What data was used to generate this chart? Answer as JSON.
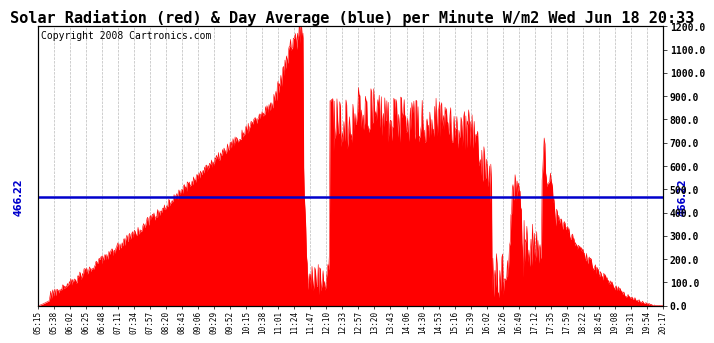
{
  "title": "Solar Radiation (red) & Day Average (blue) per Minute W/m2 Wed Jun 18 20:33",
  "copyright_text": "Copyright 2008 Cartronics.com",
  "average_value": 466.22,
  "y_min": 0.0,
  "y_max": 1200.0,
  "y_ticks": [
    0.0,
    100.0,
    200.0,
    300.0,
    400.0,
    500.0,
    600.0,
    700.0,
    800.0,
    900.0,
    1000.0,
    1100.0,
    1200.0
  ],
  "fill_color": "#FF0000",
  "line_color": "#FF0000",
  "avg_line_color": "#0000CC",
  "background_color": "#FFFFFF",
  "grid_color": "#AAAAAA",
  "title_fontsize": 11,
  "copyright_fontsize": 7,
  "x_labels": [
    "05:15",
    "05:38",
    "06:02",
    "06:25",
    "06:48",
    "07:11",
    "07:34",
    "07:57",
    "08:20",
    "08:43",
    "09:06",
    "09:29",
    "09:52",
    "10:15",
    "10:38",
    "11:01",
    "11:24",
    "11:47",
    "12:10",
    "12:33",
    "12:57",
    "13:20",
    "13:43",
    "14:06",
    "14:30",
    "14:53",
    "15:16",
    "15:39",
    "16:02",
    "16:26",
    "16:49",
    "17:12",
    "17:35",
    "17:59",
    "18:22",
    "18:45",
    "19:08",
    "19:31",
    "19:54",
    "20:17"
  ]
}
